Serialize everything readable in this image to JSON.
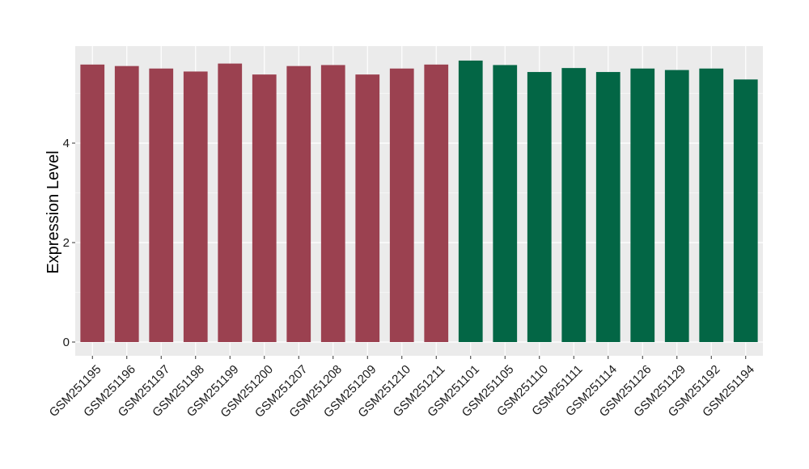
{
  "chart_data": {
    "type": "bar",
    "title": "",
    "xlabel": "",
    "ylabel": "Expression Level",
    "ylim": [
      0,
      5.85
    ],
    "yticks": [
      0,
      2,
      4
    ],
    "grid": true,
    "legend": "none",
    "panel_background": "#EBEBEB",
    "grid_color": "#FFFFFF",
    "categories": [
      "GSM251195",
      "GSM251196",
      "GSM251197",
      "GSM251198",
      "GSM251199",
      "GSM251200",
      "GSM251207",
      "GSM251208",
      "GSM251209",
      "GSM251210",
      "GSM251211",
      "GSM251101",
      "GSM251105",
      "GSM251110",
      "GSM251111",
      "GSM251114",
      "GSM251126",
      "GSM251129",
      "GSM251192",
      "GSM251194"
    ],
    "values": [
      5.58,
      5.55,
      5.5,
      5.44,
      5.6,
      5.38,
      5.55,
      5.57,
      5.38,
      5.5,
      5.58,
      5.66,
      5.57,
      5.43,
      5.51,
      5.43,
      5.5,
      5.47,
      5.5,
      5.28
    ],
    "bar_colors": [
      "#9B4150",
      "#9B4150",
      "#9B4150",
      "#9B4150",
      "#9B4150",
      "#9B4150",
      "#9B4150",
      "#9B4150",
      "#9B4150",
      "#9B4150",
      "#9B4150",
      "#036645",
      "#036645",
      "#036645",
      "#036645",
      "#036645",
      "#036645",
      "#036645",
      "#036645",
      "#036645"
    ]
  }
}
